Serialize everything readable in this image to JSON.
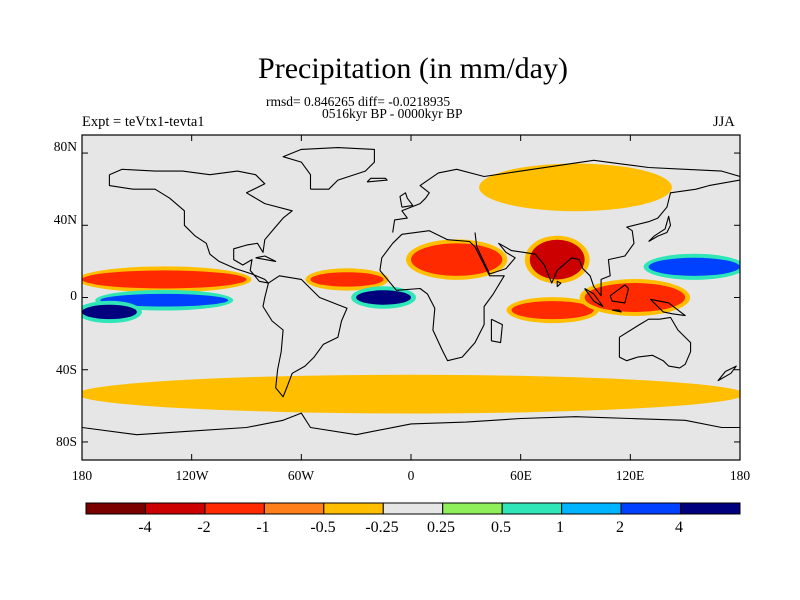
{
  "title": "Precipitation (in mm/day)",
  "stats_line": "rmsd= 0.846265 diff= -0.0218935",
  "period_line": "0516kyr BP - 0000kyr BP",
  "left_label": "Expt = teVtx1-tevta1",
  "right_label": "JJA",
  "lat_labels": [
    "80N",
    "40N",
    "0",
    "40S",
    "80S"
  ],
  "lat_values": [
    80,
    40,
    0,
    -40,
    -80
  ],
  "lon_labels": [
    "180",
    "120W",
    "60W",
    "0",
    "60E",
    "120E",
    "180"
  ],
  "lon_values": [
    -180,
    -120,
    -60,
    0,
    60,
    120,
    180
  ],
  "colorbar": {
    "labels": [
      "-4",
      "-2",
      "-1",
      "-0.5",
      "-0.25",
      "0.25",
      "0.5",
      "1",
      "2",
      "4"
    ],
    "colors": [
      "#7a0000",
      "#cc0000",
      "#ff2a00",
      "#ff7f1a",
      "#ffbf00",
      "#e6e6e6",
      "#8fef5a",
      "#2ee6b8",
      "#00b4ff",
      "#0040ff",
      "#00007f"
    ]
  },
  "chart_data": {
    "type": "heatmap",
    "title": "Precipitation (in mm/day)",
    "subtitle": "rmsd= 0.846265 diff= -0.0218935 / 0516kyr BP - 0000kyr BP",
    "x_range": [
      -180,
      180
    ],
    "y_range": [
      -90,
      90
    ],
    "units": "mm/day",
    "levels": [
      -4,
      -2,
      -1,
      -0.5,
      -0.25,
      0.25,
      0.5,
      1,
      2,
      4
    ],
    "anomaly_features": [
      {
        "region": "Tropical Pacific north",
        "lon": [
          -180,
          -90
        ],
        "lat": [
          5,
          15
        ],
        "value": -2
      },
      {
        "region": "Tropical Pacific south of equator",
        "lon": [
          -170,
          -100
        ],
        "lat": [
          -5,
          2
        ],
        "value": 2
      },
      {
        "region": "South Pacific west",
        "lon": [
          -180,
          -150
        ],
        "lat": [
          -12,
          -4
        ],
        "value": 4
      },
      {
        "region": "Tropical Atlantic",
        "lon": [
          -55,
          -15
        ],
        "lat": [
          6,
          14
        ],
        "value": -2
      },
      {
        "region": "Equatorial Atlantic",
        "lon": [
          -30,
          0
        ],
        "lat": [
          -4,
          4
        ],
        "value": 4
      },
      {
        "region": "North Africa / Sahel",
        "lon": [
          0,
          50
        ],
        "lat": [
          12,
          30
        ],
        "value": -2
      },
      {
        "region": "Indian subcontinent",
        "lon": [
          65,
          95
        ],
        "lat": [
          10,
          32
        ],
        "value": -4
      },
      {
        "region": "Indian Ocean south",
        "lon": [
          55,
          100
        ],
        "lat": [
          -12,
          -2
        ],
        "value": -2
      },
      {
        "region": "Maritime Continent",
        "lon": [
          95,
          150
        ],
        "lat": [
          -8,
          8
        ],
        "value": -2
      },
      {
        "region": "Western Pacific",
        "lon": [
          130,
          180
        ],
        "lat": [
          12,
          22
        ],
        "value": 2
      },
      {
        "region": "Eurasia north",
        "lon": [
          40,
          140
        ],
        "lat": [
          50,
          72
        ],
        "value": -0.5
      },
      {
        "region": "Southern Ocean",
        "lon": [
          -180,
          180
        ],
        "lat": [
          -62,
          -45
        ],
        "value": -0.5
      }
    ]
  }
}
